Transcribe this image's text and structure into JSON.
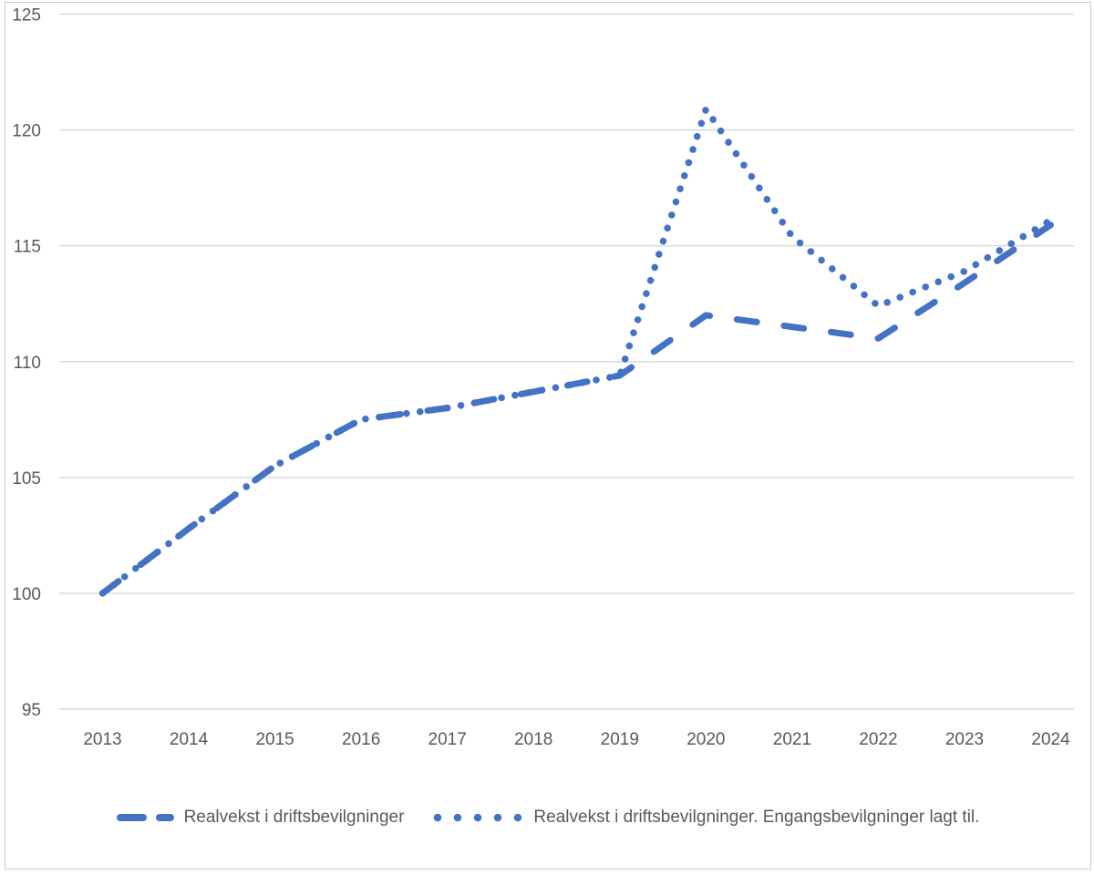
{
  "chart_data": {
    "type": "line",
    "categories": [
      "2013",
      "2014",
      "2015",
      "2016",
      "2017",
      "2018",
      "2019",
      "2020",
      "2021",
      "2022",
      "2023",
      "2024"
    ],
    "series": [
      {
        "name": "Realvekst i driftsbevilgninger",
        "line_style": "dashed",
        "values": [
          100,
          102.8,
          105.5,
          107.5,
          108.0,
          108.7,
          109.4,
          112.0,
          111.5,
          111.0,
          113.4,
          115.9
        ]
      },
      {
        "name": "Realvekst i driftsbevilgninger. Engangsbevilgninger lagt til.",
        "line_style": "dotted",
        "values": [
          100,
          102.8,
          105.5,
          107.5,
          108.0,
          108.7,
          109.4,
          120.9,
          115.4,
          112.4,
          113.9,
          116.1
        ]
      }
    ],
    "title": "",
    "xlabel": "",
    "ylabel": "",
    "ylim": [
      95,
      125
    ],
    "yticks": [
      "95",
      "100",
      "105",
      "110",
      "115",
      "120",
      "125"
    ],
    "grid": "horizontal",
    "legend_position": "bottom",
    "line_color": "#4472C4",
    "axis_text_color": "#595959",
    "gridline_color": "#D9D9D9",
    "frame_border_color": "#C9C9C9",
    "background_color": "#FFFFFF"
  }
}
